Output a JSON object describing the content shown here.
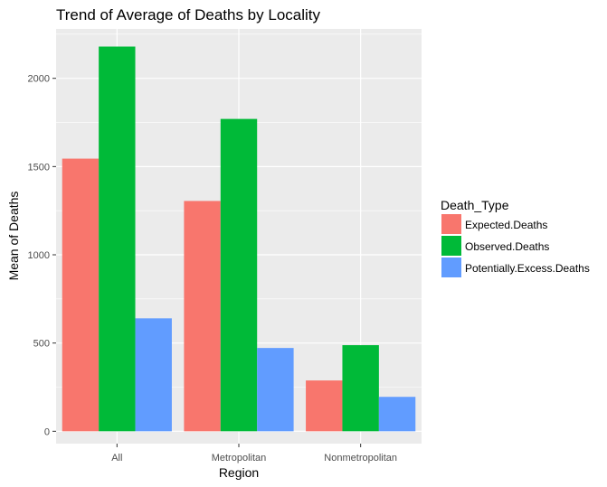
{
  "chart_data": {
    "type": "bar",
    "title": "Trend of Average of Deaths by Locality",
    "xlabel": "Region",
    "ylabel": "Mean of Deaths",
    "categories": [
      "All",
      "Metropolitan",
      "Nonmetropolitan"
    ],
    "series": [
      {
        "name": "Expected.Deaths",
        "color": "#F8766D",
        "values": [
          1545,
          1305,
          288
        ]
      },
      {
        "name": "Observed.Deaths",
        "color": "#00BA38",
        "values": [
          2180,
          1770,
          488
        ]
      },
      {
        "name": "Potentially.Excess.Deaths",
        "color": "#619CFF",
        "values": [
          640,
          472,
          195
        ]
      }
    ],
    "ylim": [
      -70,
      2280
    ],
    "yticks": [
      0,
      500,
      1000,
      1500,
      2000
    ],
    "legend": {
      "title": "Death_Type",
      "position": "right"
    },
    "grid": true,
    "panel_background": "#EBEBEB",
    "grid_color": "#FFFFFF"
  }
}
